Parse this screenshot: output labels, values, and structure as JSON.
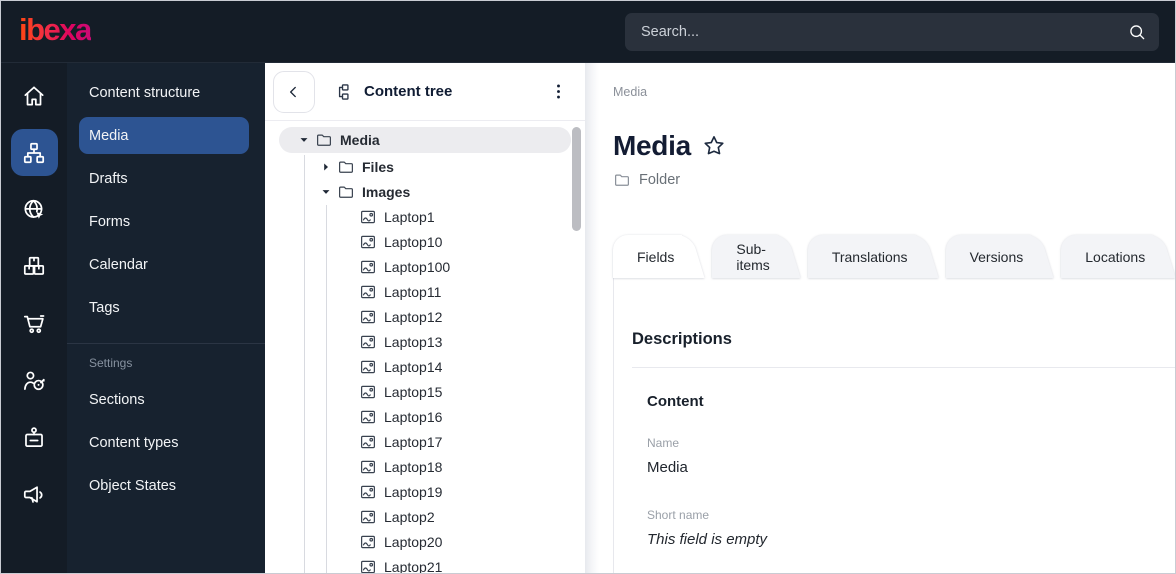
{
  "colors": {
    "topbar_bg": "#141c26",
    "menu_bg": "#17222f",
    "accent_blue": "#2d5492",
    "brand_gradient": [
      "#ff4713",
      "#cb0b76"
    ],
    "tab_inactive_bg": "#f3f4f7"
  },
  "icons": {
    "search": "search",
    "back": "chevron-left",
    "tree": "content-tree",
    "menu": "kebab",
    "star": "star",
    "type": "folder"
  },
  "topbar": {
    "logo": "ibexa",
    "search_placeholder": "Search..."
  },
  "nav_rail": {
    "items": [
      {
        "icon": "home",
        "active": false
      },
      {
        "icon": "sitemap",
        "active": true
      },
      {
        "icon": "globe-cursor",
        "active": false
      },
      {
        "icon": "package-boxes",
        "active": false
      },
      {
        "icon": "shopping-cart",
        "active": false
      },
      {
        "icon": "audience-target",
        "active": false
      },
      {
        "icon": "id-badge",
        "active": false
      },
      {
        "icon": "megaphone",
        "active": false
      }
    ]
  },
  "sidebar": {
    "items": [
      {
        "label": "Content structure",
        "active": false
      },
      {
        "label": "Media",
        "active": true
      },
      {
        "label": "Drafts",
        "active": false
      },
      {
        "label": "Forms",
        "active": false
      },
      {
        "label": "Calendar",
        "active": false
      },
      {
        "label": "Tags",
        "active": false
      }
    ],
    "settings_label": "Settings",
    "settings_items": [
      {
        "label": "Sections"
      },
      {
        "label": "Content types"
      },
      {
        "label": "Object States"
      }
    ]
  },
  "content_tree": {
    "title": "Content tree",
    "nodes": [
      {
        "label": "Media",
        "level": 0,
        "icon": "folder",
        "caret": "down",
        "selected": true,
        "weight": 700
      },
      {
        "label": "Files",
        "level": 1,
        "icon": "folder",
        "caret": "right",
        "weight": 600
      },
      {
        "label": "Images",
        "level": 1,
        "icon": "folder",
        "caret": "down",
        "weight": 600
      },
      {
        "label": "Laptop1",
        "level": 2,
        "icon": "image"
      },
      {
        "label": "Laptop10",
        "level": 2,
        "icon": "image"
      },
      {
        "label": "Laptop100",
        "level": 2,
        "icon": "image"
      },
      {
        "label": "Laptop11",
        "level": 2,
        "icon": "image"
      },
      {
        "label": "Laptop12",
        "level": 2,
        "icon": "image"
      },
      {
        "label": "Laptop13",
        "level": 2,
        "icon": "image"
      },
      {
        "label": "Laptop14",
        "level": 2,
        "icon": "image"
      },
      {
        "label": "Laptop15",
        "level": 2,
        "icon": "image"
      },
      {
        "label": "Laptop16",
        "level": 2,
        "icon": "image"
      },
      {
        "label": "Laptop17",
        "level": 2,
        "icon": "image"
      },
      {
        "label": "Laptop18",
        "level": 2,
        "icon": "image"
      },
      {
        "label": "Laptop19",
        "level": 2,
        "icon": "image"
      },
      {
        "label": "Laptop2",
        "level": 2,
        "icon": "image"
      },
      {
        "label": "Laptop20",
        "level": 2,
        "icon": "image"
      },
      {
        "label": "Laptop21",
        "level": 2,
        "icon": "image"
      }
    ]
  },
  "main": {
    "breadcrumb": "Media",
    "title": "Media",
    "content_type": "Folder",
    "tabs": [
      {
        "label": "Fields",
        "active": true
      },
      {
        "label": "Sub-items",
        "active": false
      },
      {
        "label": "Translations",
        "active": false
      },
      {
        "label": "Versions",
        "active": false
      },
      {
        "label": "Locations",
        "active": false
      }
    ],
    "section_title": "Descriptions",
    "group_title": "Content",
    "fields": [
      {
        "label": "Name",
        "value": "Media",
        "empty": false
      },
      {
        "label": "Short name",
        "value": "This field is empty",
        "empty": true
      }
    ]
  }
}
